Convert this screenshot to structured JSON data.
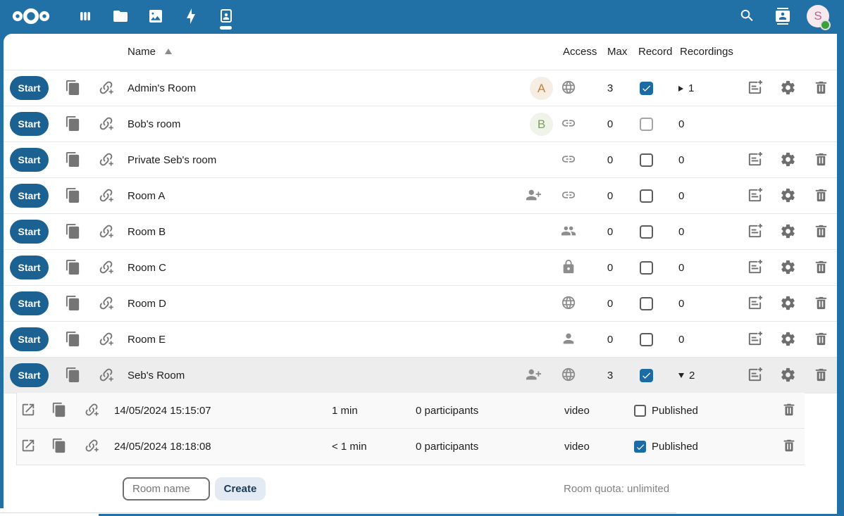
{
  "colors": {
    "header_blue": "#2171a7",
    "primary_button_blue": "#1b6191",
    "checkbox_blue": "#1d6ba4",
    "highlight_row_gray": "#ededed"
  },
  "topbar": {
    "logo_icon": "nextcloud-logo",
    "apps": [
      {
        "name": "dashboard",
        "icon": "view-column",
        "active": false
      },
      {
        "name": "files",
        "icon": "folder",
        "active": false
      },
      {
        "name": "photos",
        "icon": "image",
        "active": false
      },
      {
        "name": "activity",
        "icon": "lightning",
        "active": false
      },
      {
        "name": "bbb",
        "icon": "person-frame",
        "active": true
      }
    ],
    "search_icon": "magnify",
    "contacts_icon": "contacts",
    "avatar": {
      "initial": "S",
      "status": "online"
    }
  },
  "table": {
    "start_label": "Start",
    "headers": {
      "name": "Name",
      "access": "Access",
      "max": "Max",
      "record": "Record",
      "recordings": "Recordings"
    },
    "sort": "ascending",
    "row_icons": [
      "content-copy",
      "link-plus"
    ],
    "action_icons": [
      "edit",
      "settings",
      "delete"
    ],
    "rows": [
      {
        "name": "Admin's Room",
        "avatar": {
          "initial": "A",
          "bg": "#f6eee3",
          "fg": "#c07f3e"
        },
        "access_icons": [
          "web"
        ],
        "max": "3",
        "record_checked": true,
        "record_disabled": false,
        "recordings": "1",
        "expand": "collapsed",
        "actions": true,
        "highlighted": false
      },
      {
        "name": "Bob's room",
        "avatar": {
          "initial": "B",
          "bg": "#eff3ea",
          "fg": "#7da257"
        },
        "access_icons": [
          "link"
        ],
        "max": "0",
        "record_checked": false,
        "record_disabled": true,
        "recordings": "0",
        "expand": "none",
        "actions": false,
        "highlighted": false
      },
      {
        "name": "Private Seb's room",
        "avatar": null,
        "access_icons": [
          "link"
        ],
        "max": "0",
        "record_checked": false,
        "record_disabled": false,
        "recordings": "0",
        "expand": "none",
        "actions": true,
        "highlighted": false
      },
      {
        "name": "Room A",
        "avatar": null,
        "access_icons": [
          "account-plus",
          "link"
        ],
        "max": "0",
        "record_checked": false,
        "record_disabled": false,
        "recordings": "0",
        "expand": "none",
        "actions": true,
        "highlighted": false
      },
      {
        "name": "Room B",
        "avatar": null,
        "access_icons": [
          "account-multiple"
        ],
        "max": "0",
        "record_checked": false,
        "record_disabled": false,
        "recordings": "0",
        "expand": "none",
        "actions": true,
        "highlighted": false
      },
      {
        "name": "Room C",
        "avatar": null,
        "access_icons": [
          "lock"
        ],
        "max": "0",
        "record_checked": false,
        "record_disabled": false,
        "recordings": "0",
        "expand": "none",
        "actions": true,
        "highlighted": false
      },
      {
        "name": "Room D",
        "avatar": null,
        "access_icons": [
          "web"
        ],
        "max": "0",
        "record_checked": false,
        "record_disabled": false,
        "recordings": "0",
        "expand": "none",
        "actions": true,
        "highlighted": false
      },
      {
        "name": "Room E",
        "avatar": null,
        "access_icons": [
          "account"
        ],
        "max": "0",
        "record_checked": false,
        "record_disabled": false,
        "recordings": "0",
        "expand": "none",
        "actions": true,
        "highlighted": false
      },
      {
        "name": "Seb's Room",
        "avatar": null,
        "access_icons": [
          "account-plus",
          "web"
        ],
        "max": "3",
        "record_checked": true,
        "record_disabled": false,
        "recordings": "2",
        "expand": "expanded",
        "actions": true,
        "highlighted": true
      }
    ]
  },
  "recordings_panel": {
    "row_icons": [
      "open-in-new",
      "content-copy",
      "link-plus"
    ],
    "rows": [
      {
        "date": "14/05/2024 15:15:07",
        "length": "1 min",
        "participants": "0 participants",
        "type": "video",
        "published": false,
        "published_label": "Published"
      },
      {
        "date": "24/05/2024 18:18:08",
        "length": "< 1 min",
        "participants": "0 participants",
        "type": "video",
        "published": true,
        "published_label": "Published"
      }
    ]
  },
  "footer": {
    "room_name_placeholder": "Room name",
    "create_label": "Create",
    "quota_label": "Room quota: unlimited"
  }
}
